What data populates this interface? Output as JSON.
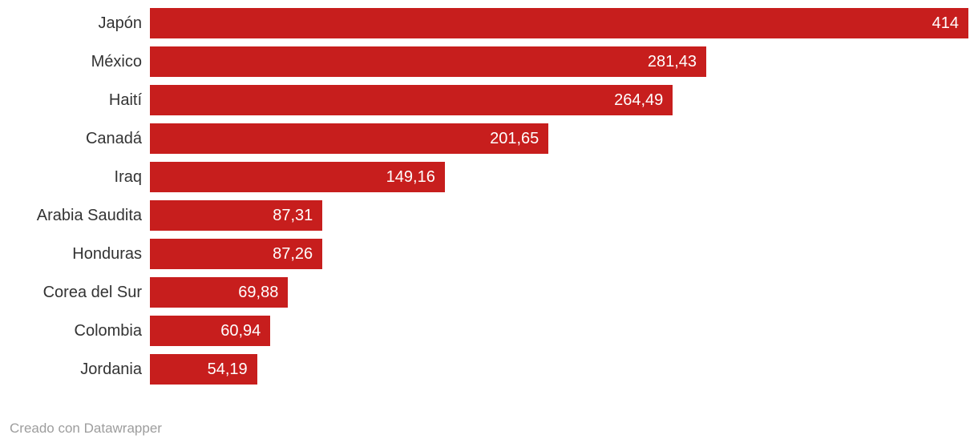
{
  "chart_data": {
    "type": "bar",
    "orientation": "horizontal",
    "title": "",
    "xlabel": "",
    "ylabel": "",
    "xlim": [
      0,
      414
    ],
    "grid": false,
    "legend": "none",
    "bar_color": "#c71e1d",
    "label_color": "#333333",
    "value_label_color": "#ffffff",
    "categories": [
      "Japón",
      "México",
      "Haití",
      "Canadá",
      "Iraq",
      "Arabia Saudita",
      "Honduras",
      "Corea del Sur",
      "Colombia",
      "Jordania"
    ],
    "values": [
      414,
      281.43,
      264.49,
      201.65,
      149.16,
      87.31,
      87.26,
      69.88,
      60.94,
      54.19
    ],
    "value_labels": [
      "414",
      "281,43",
      "264,49",
      "201,65",
      "149,16",
      "87,31",
      "87,26",
      "69,88",
      "60,94",
      "54,19"
    ]
  },
  "footer": {
    "attribution": "Creado con Datawrapper"
  }
}
